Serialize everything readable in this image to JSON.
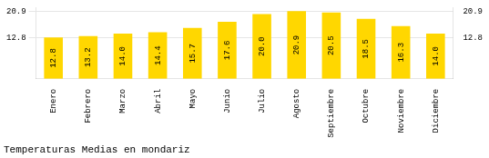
{
  "chart_data": {
    "type": "bar",
    "title": "Temperaturas Medias en mondariz",
    "categories": [
      "Enero",
      "Febrero",
      "Marzo",
      "Abril",
      "Mayo",
      "Junio",
      "Julio",
      "Agosto",
      "Septiembre",
      "Octubre",
      "Noviembre",
      "Diciembre"
    ],
    "values": [
      12.8,
      13.2,
      14.0,
      14.4,
      15.7,
      17.6,
      20.0,
      20.9,
      20.5,
      18.5,
      16.3,
      14.0
    ],
    "value_labels": [
      "12.8",
      "13.2",
      "14.0",
      "14.4",
      "15.7",
      "17.6",
      "20.0",
      "20.9",
      "20.5",
      "18.5",
      "16.3",
      "14.0"
    ],
    "data_labels": true,
    "color": "#FFD700",
    "ylim": [
      0,
      22.0
    ],
    "yticks": [
      12.8,
      20.9
    ],
    "y2lim": [
      0,
      22.0
    ],
    "y2ticks": [
      12.8,
      20.9
    ],
    "grid": true
  }
}
